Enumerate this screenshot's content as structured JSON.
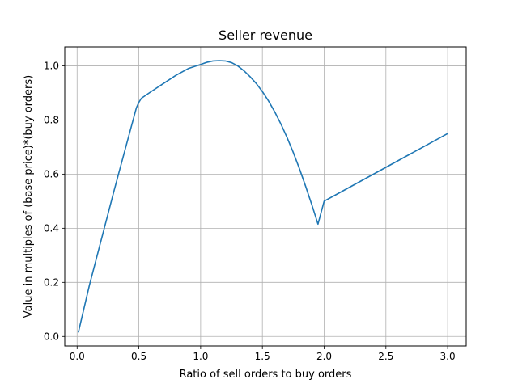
{
  "chart_data": {
    "type": "line",
    "title": "Seller revenue",
    "xlabel": "Ratio of sell orders to buy orders",
    "ylabel": "Value in multiples of (base price)*(buy orders)",
    "xlim": [
      -0.1,
      3.15
    ],
    "ylim": [
      -0.035,
      1.07
    ],
    "xticks": [
      0.0,
      0.5,
      1.0,
      1.5,
      2.0,
      2.5,
      3.0
    ],
    "xtick_labels": [
      "0.0",
      "0.5",
      "1.0",
      "1.5",
      "2.0",
      "2.5",
      "3.0"
    ],
    "yticks": [
      0.0,
      0.2,
      0.4,
      0.6,
      0.8,
      1.0
    ],
    "ytick_labels": [
      "0.0",
      "0.2",
      "0.4",
      "0.6",
      "0.8",
      "1.0"
    ],
    "grid": true,
    "line_color": "#1f77b4",
    "series": [
      {
        "x": [
          0.01,
          0.1,
          0.2,
          0.3,
          0.4,
          0.48,
          0.5,
          0.52,
          0.6,
          0.7,
          0.8,
          0.9,
          1.0,
          1.05,
          1.1,
          1.15,
          1.2,
          1.25,
          1.3,
          1.35,
          1.4,
          1.45,
          1.5,
          1.55,
          1.6,
          1.65,
          1.7,
          1.75,
          1.8,
          1.85,
          1.9,
          1.95,
          2.0,
          2.1,
          2.2,
          2.3,
          2.4,
          2.5,
          2.6,
          2.7,
          2.8,
          2.9,
          3.0
        ],
        "y": [
          0.015,
          0.19,
          0.365,
          0.54,
          0.71,
          0.845,
          0.865,
          0.88,
          0.905,
          0.935,
          0.965,
          0.99,
          1.005,
          1.013,
          1.018,
          1.019,
          1.018,
          1.012,
          1.0,
          0.982,
          0.96,
          0.935,
          0.905,
          0.87,
          0.83,
          0.785,
          0.735,
          0.68,
          0.62,
          0.555,
          0.487,
          0.415,
          0.5,
          0.525,
          0.55,
          0.575,
          0.6,
          0.625,
          0.65,
          0.675,
          0.7,
          0.725,
          0.75
        ]
      }
    ]
  }
}
